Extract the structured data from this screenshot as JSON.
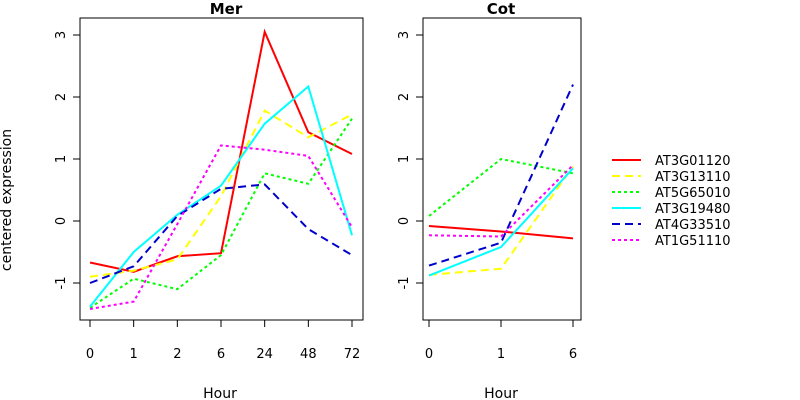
{
  "chart_data": [
    {
      "type": "line",
      "title": "Mer",
      "xlabel": "Hour",
      "ylabel": "centered expression",
      "categories": [
        "0",
        "1",
        "2",
        "6",
        "24",
        "48",
        "72"
      ],
      "ylim": [
        -1.6,
        3.3
      ],
      "yticks": [
        "-1",
        "0",
        "1",
        "2",
        "3"
      ],
      "series": [
        {
          "name": "AT3G01120",
          "values": [
            -0.67,
            -0.82,
            -0.57,
            -0.52,
            3.05,
            1.43,
            1.08
          ]
        },
        {
          "name": "AT3G13110",
          "values": [
            -0.9,
            -0.8,
            -0.62,
            0.4,
            1.78,
            1.35,
            1.72
          ]
        },
        {
          "name": "AT5G65010",
          "values": [
            -1.4,
            -0.93,
            -1.1,
            -0.55,
            0.77,
            0.6,
            1.65
          ]
        },
        {
          "name": "AT3G19480",
          "values": [
            -1.38,
            -0.5,
            0.1,
            0.57,
            1.57,
            2.17,
            -0.23
          ]
        },
        {
          "name": "AT4G33510",
          "values": [
            -1.0,
            -0.73,
            0.08,
            0.52,
            0.59,
            -0.13,
            -0.55
          ]
        },
        {
          "name": "AT1G51110",
          "values": [
            -1.42,
            -1.3,
            -0.05,
            1.22,
            1.15,
            1.05,
            -0.1
          ]
        }
      ]
    },
    {
      "type": "line",
      "title": "Cot",
      "xlabel": "Hour",
      "categories": [
        "0",
        "1",
        "6"
      ],
      "ylim": [
        -1.6,
        3.3
      ],
      "yticks": [
        "-1",
        "0",
        "1",
        "2",
        "3"
      ],
      "series": [
        {
          "name": "AT3G01120",
          "values": [
            -0.08,
            -0.17,
            -0.28
          ]
        },
        {
          "name": "AT3G13110",
          "values": [
            -0.87,
            -0.77,
            0.88
          ]
        },
        {
          "name": "AT5G65010",
          "values": [
            0.08,
            1.0,
            0.77
          ]
        },
        {
          "name": "AT3G19480",
          "values": [
            -0.88,
            -0.42,
            0.85
          ]
        },
        {
          "name": "AT4G33510",
          "values": [
            -0.72,
            -0.35,
            2.2
          ]
        },
        {
          "name": "AT1G51110",
          "values": [
            -0.23,
            -0.25,
            0.9
          ]
        }
      ]
    }
  ],
  "legend": {
    "placement": "right",
    "entries": [
      {
        "name": "AT3G01120",
        "color": "#ff0000",
        "dash": "solid"
      },
      {
        "name": "AT3G13110",
        "color": "#ffff00",
        "dash": "dashed"
      },
      {
        "name": "AT5G65010",
        "color": "#00ff00",
        "dash": "dotted"
      },
      {
        "name": "AT3G19480",
        "color": "#00ffff",
        "dash": "solid"
      },
      {
        "name": "AT4G33510",
        "color": "#0000cc",
        "dash": "dashed"
      },
      {
        "name": "AT1G51110",
        "color": "#ff00ff",
        "dash": "dotted"
      }
    ]
  }
}
